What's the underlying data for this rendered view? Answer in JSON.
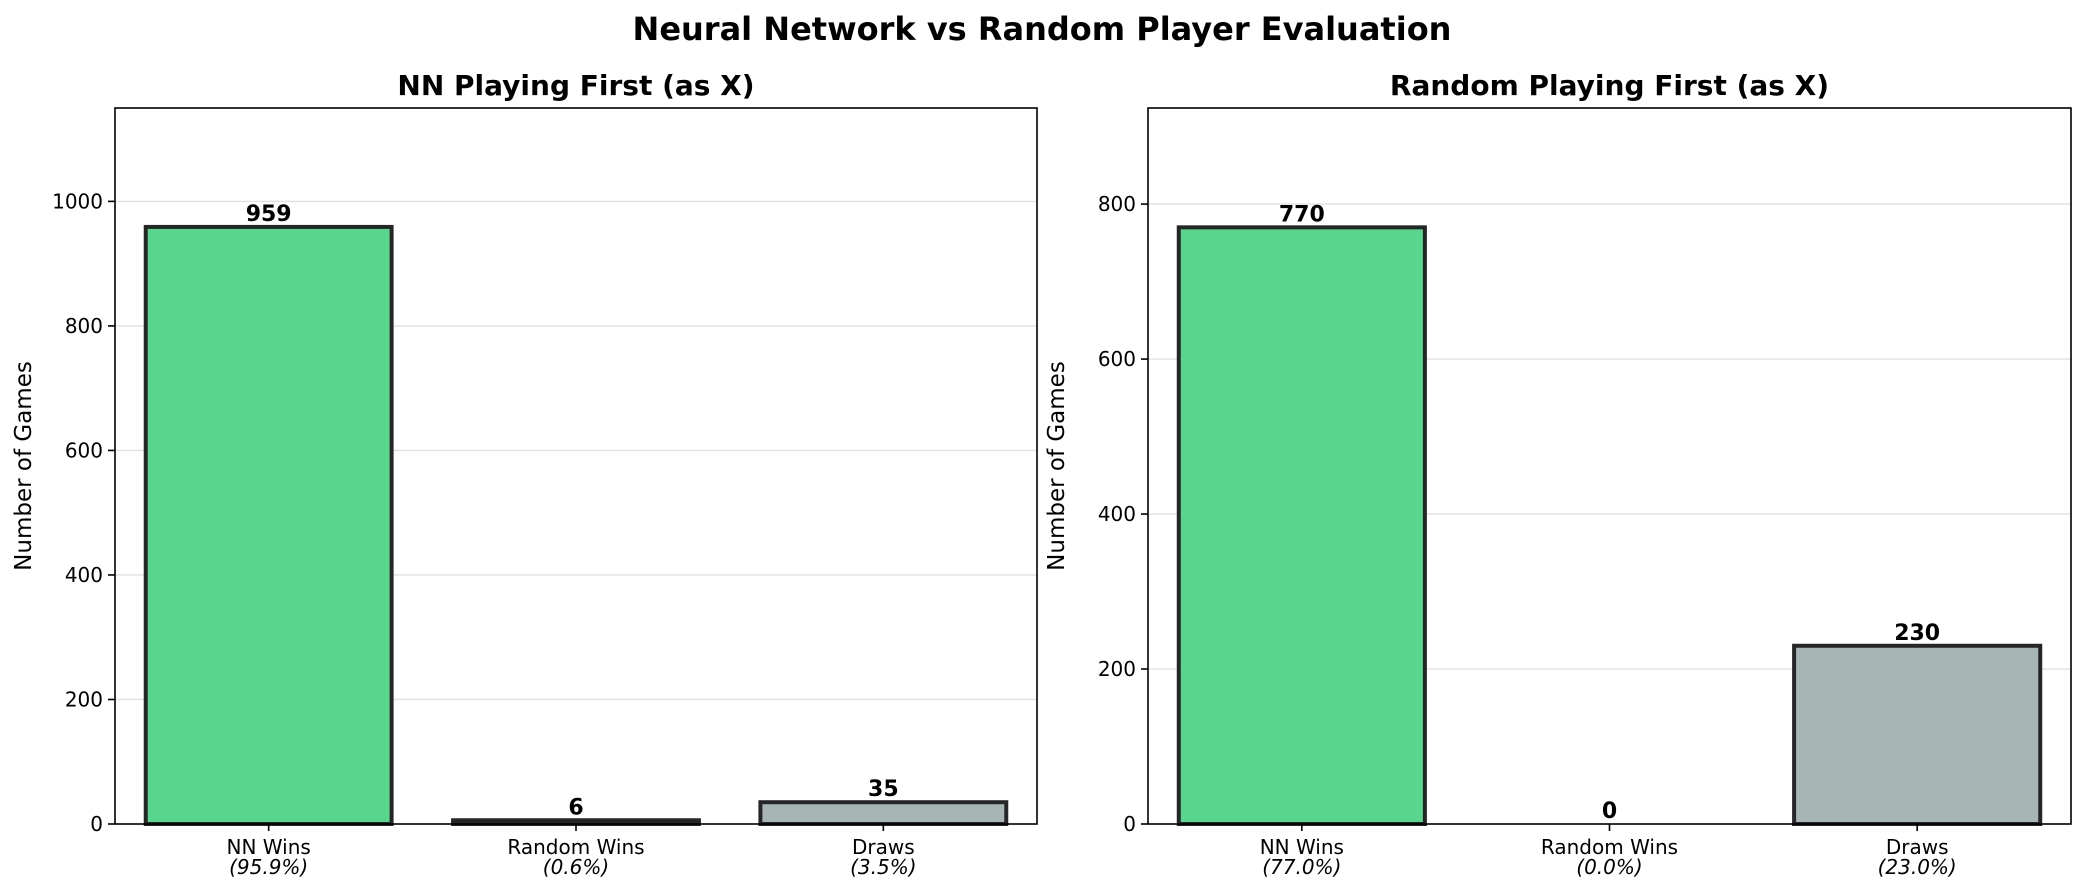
{
  "chart_data": {
    "title": "Neural Network vs Random Player Evaluation",
    "panels": [
      {
        "type": "bar",
        "title": "NN Playing First (as X)",
        "ylabel": "Number of Games",
        "categories": [
          "NN Wins",
          "Random Wins",
          "Draws"
        ],
        "percent_labels": [
          "(95.9%)",
          "(0.6%)",
          "(3.5%)"
        ],
        "values": [
          959,
          6,
          35
        ],
        "colors": [
          "#58d68d",
          "#e74c3c",
          "#a8b5b5"
        ],
        "ylim": [
          0,
          1150
        ],
        "yticks": [
          0,
          200,
          400,
          600,
          800,
          1000
        ],
        "grid": true
      },
      {
        "type": "bar",
        "title": "Random Playing First (as X)",
        "ylabel": "Number of Games",
        "categories": [
          "NN Wins",
          "Random Wins",
          "Draws"
        ],
        "percent_labels": [
          "(77.0%)",
          "(0.0%)",
          "(23.0%)"
        ],
        "values": [
          770,
          0,
          230
        ],
        "colors": [
          "#58d68d",
          "#e74c3c",
          "#a8b5b5"
        ],
        "ylim": [
          0,
          924
        ],
        "yticks": [
          0,
          200,
          400,
          600,
          800
        ],
        "grid": true
      }
    ]
  }
}
